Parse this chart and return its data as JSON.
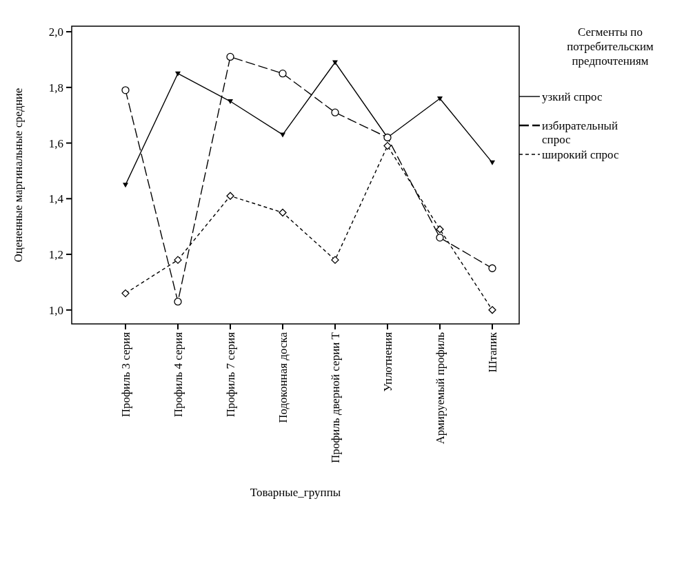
{
  "chart_data": {
    "type": "line",
    "xlabel": "Товарные_группы",
    "ylabel": "Оцененные маргинальные средние",
    "legend_title": "Сегменты по потребительским предпочтениям",
    "legend": "right",
    "grid": false,
    "categories": [
      "Профиль 3 серия",
      "Профиль 4 серия",
      "Профиль 7 серия",
      "Подоконная доска",
      "Профиль дверной серии Т",
      "Уплотнения",
      "Армируемый профиль",
      "Штапик"
    ],
    "ylim": [
      0.95,
      2.02
    ],
    "yticks": [
      {
        "value": 1.0,
        "label": "1,0"
      },
      {
        "value": 1.2,
        "label": "1,2"
      },
      {
        "value": 1.4,
        "label": "1,4"
      },
      {
        "value": 1.6,
        "label": "1,6"
      },
      {
        "value": 1.8,
        "label": "1,8"
      },
      {
        "value": 2.0,
        "label": "2,0"
      }
    ],
    "series": [
      {
        "name": "узкий спрос",
        "color": "#000000",
        "marker": "triangle",
        "line_style": "solid",
        "values": [
          1.45,
          1.85,
          1.75,
          1.63,
          1.89,
          1.62,
          1.76,
          1.53
        ]
      },
      {
        "name": "избирательный спрос",
        "color": "#000000",
        "marker": "circle",
        "line_style": "dashed",
        "values": [
          1.79,
          1.03,
          1.91,
          1.85,
          1.71,
          1.62,
          1.26,
          1.15
        ]
      },
      {
        "name": "широкий спрос",
        "color": "#000000",
        "marker": "diamond",
        "line_style": "dotted",
        "values": [
          1.06,
          1.18,
          1.41,
          1.35,
          1.18,
          1.59,
          1.29,
          1.0
        ]
      }
    ]
  }
}
